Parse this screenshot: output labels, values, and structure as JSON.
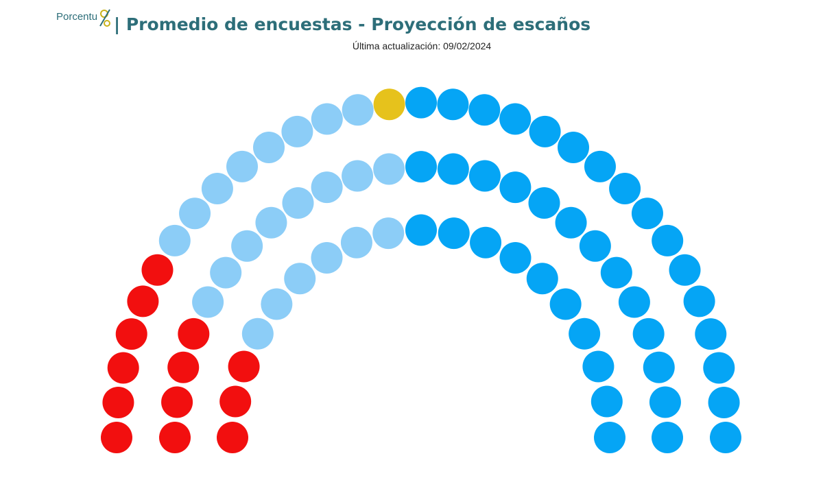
{
  "chart_data": {
    "type": "parliament",
    "logo": "Porcentu",
    "title": "| Promedio de encuestas - Proyección de escaños",
    "subtitle": "Última actualización: 09/02/2024",
    "series": [
      {
        "color": "#f20f0f",
        "value": 13
      },
      {
        "color": "#8ccdf7",
        "value": 22
      },
      {
        "color": "#e6c21c",
        "value": 1
      },
      {
        "color": "#05a5f5",
        "value": 39
      }
    ]
  }
}
